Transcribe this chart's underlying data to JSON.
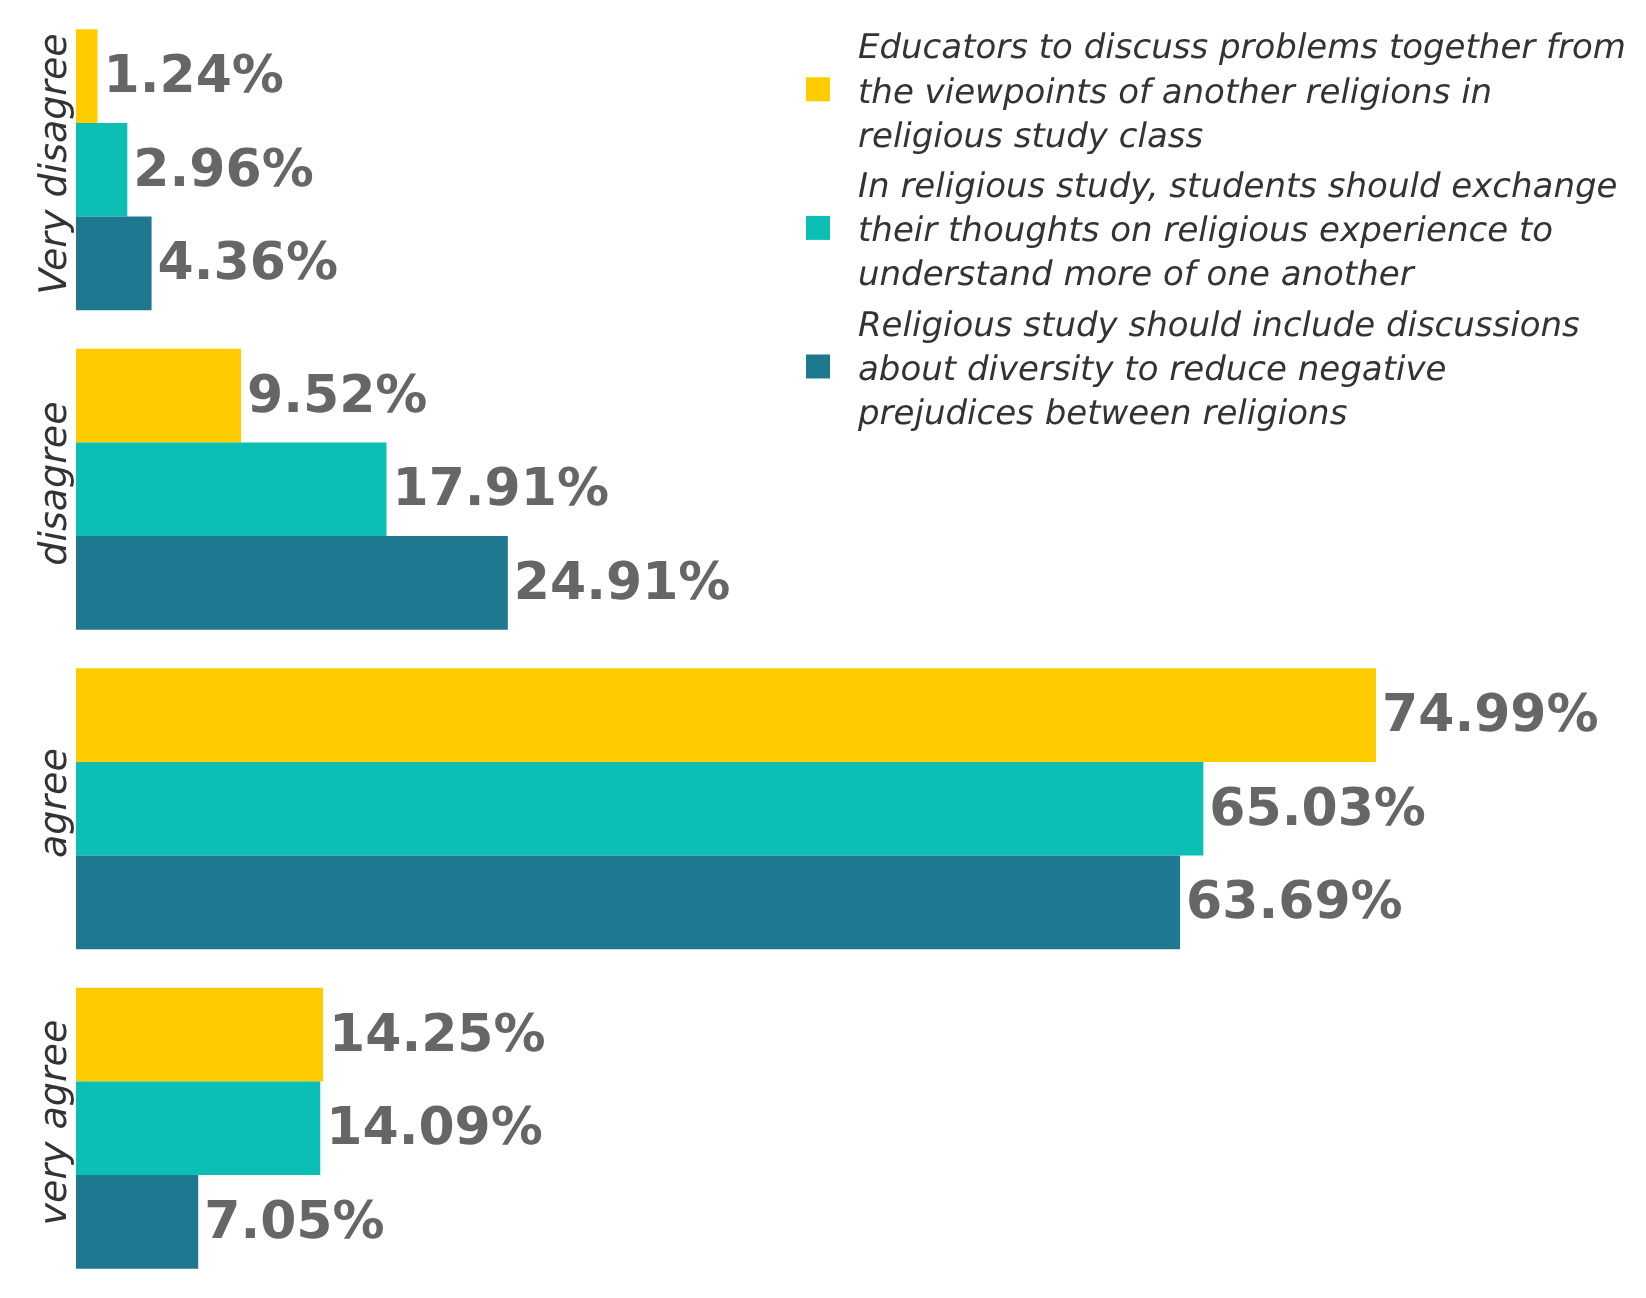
{
  "chart_data": {
    "type": "bar",
    "orientation": "horizontal",
    "categories": [
      "Very disagree",
      "disagree",
      "agree",
      "very agree"
    ],
    "series": [
      {
        "name": "Educators to discuss problems together from the viewpoints of another religions in religious study class",
        "color": "#ffcc00",
        "values": [
          1.24,
          9.52,
          74.99,
          14.25
        ],
        "value_labels": [
          "1.24%",
          "9.52%",
          "74.99%",
          "14.25%"
        ]
      },
      {
        "name": "In religious study, students should exchange their thoughts on religious experience to understand more of one another",
        "color": "#0bbfb5",
        "values": [
          2.96,
          17.91,
          65.03,
          14.09
        ],
        "value_labels": [
          "2.96%",
          "17.91%",
          "65.03%",
          "14.09%"
        ]
      },
      {
        "name": "Religious study should include discussions about diversity to reduce negative prejudices between religions",
        "color": "#1e788f",
        "values": [
          4.36,
          24.91,
          63.69,
          7.05
        ],
        "value_labels": [
          "4.36%",
          "24.91%",
          "63.69%",
          "7.05%"
        ]
      }
    ],
    "tick_labels": "y",
    "legend": "top right"
  }
}
